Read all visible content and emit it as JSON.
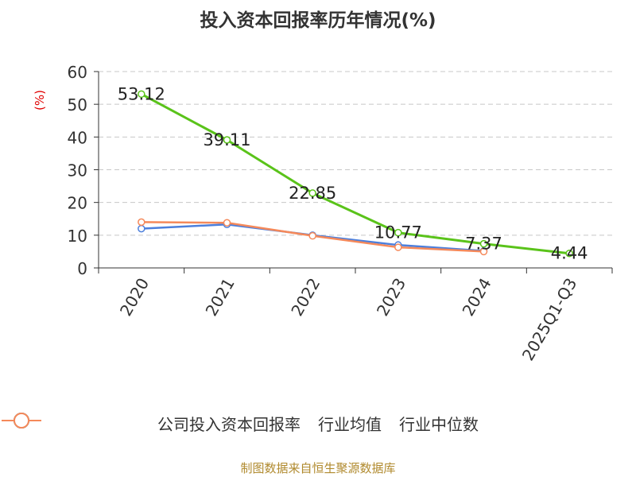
{
  "title": "投入资本回报率历年情况(%)",
  "source": "制图数据来自恒生聚源数据库",
  "chart_data": {
    "type": "line",
    "title": "投入资本回报率历年情况(%)",
    "ylabel": "(%)",
    "xlabel": "",
    "categories": [
      "2020",
      "2021",
      "2022",
      "2023",
      "2024",
      "2025Q1-Q3"
    ],
    "ylim": [
      0,
      60
    ],
    "yticks": [
      0,
      10,
      20,
      30,
      40,
      50,
      60
    ],
    "grid": true,
    "legend_position": "bottom",
    "series": [
      {
        "name": "公司投入资本回报率",
        "color": "#5ac31a",
        "values": [
          53.12,
          39.11,
          22.85,
          10.77,
          7.37,
          4.44
        ],
        "labels": [
          "53.12",
          "39.11",
          "22.85",
          "10.77",
          "7.37",
          "4.44"
        ]
      },
      {
        "name": "行业均值",
        "color": "#4c7fdc",
        "values": [
          12.0,
          13.3,
          10.0,
          7.0,
          5.2,
          null
        ]
      },
      {
        "name": "行业中位数",
        "color": "#f5895a",
        "values": [
          14.0,
          13.8,
          9.8,
          6.3,
          5.0,
          null
        ]
      }
    ]
  }
}
